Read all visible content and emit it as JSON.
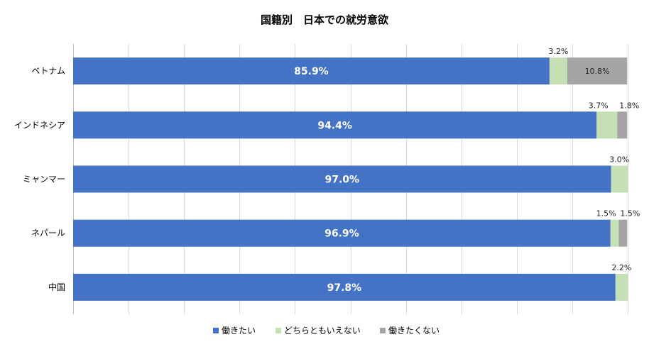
{
  "chart_data": {
    "type": "bar",
    "orientation": "horizontal",
    "stacked": true,
    "title": "国籍別　日本での就労意欲",
    "categories": [
      "ベトナム",
      "インドネシア",
      "ミャンマー",
      "ネパール",
      "中国"
    ],
    "series": [
      {
        "name": "働きたい",
        "color": "#4472C4",
        "values": [
          85.9,
          94.4,
          97.0,
          96.9,
          97.8
        ],
        "labels": [
          "85.9%",
          "94.4%",
          "97.0%",
          "96.9%",
          "97.8%"
        ]
      },
      {
        "name": "どちらともいえない",
        "color": "#C5E0B4",
        "values": [
          3.2,
          3.7,
          3.0,
          1.5,
          2.2
        ],
        "labels": [
          "3.2%",
          "3.7%",
          "3.0%",
          "1.5%",
          "2.2%"
        ]
      },
      {
        "name": "働きたくない",
        "color": "#A5A5A5",
        "values": [
          10.8,
          1.8,
          0,
          1.5,
          0
        ],
        "labels": [
          "10.8%",
          "1.8%",
          "",
          "1.5%",
          ""
        ]
      }
    ],
    "xlim": [
      0,
      100
    ],
    "grid": true,
    "legend": "bottom"
  }
}
